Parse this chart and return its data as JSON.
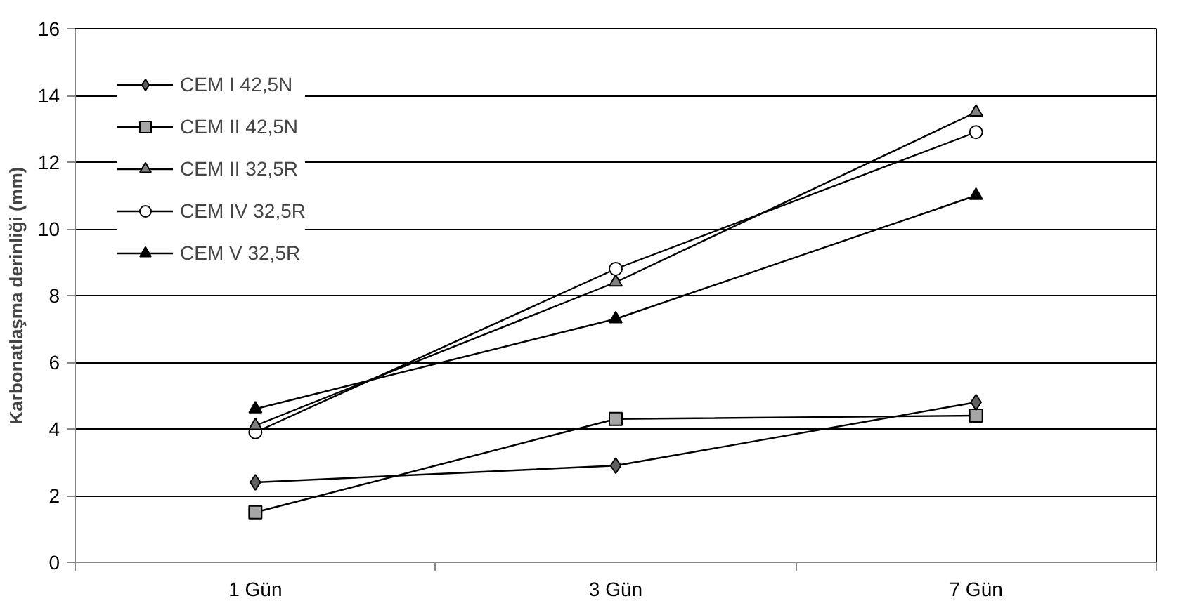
{
  "chart_data": {
    "type": "line",
    "ylabel": "Karbonatlaşma derinliği (mm)",
    "categories": [
      "1 Gün",
      "3 Gün",
      "7 Gün"
    ],
    "series": [
      {
        "name": "CEM I 42,5N",
        "color": "#606060",
        "marker": "diamond",
        "values": [
          2.4,
          2.9,
          4.8
        ]
      },
      {
        "name": "CEM II 42,5N",
        "color": "#a6a6a6",
        "marker": "square",
        "values": [
          1.5,
          4.3,
          4.4
        ]
      },
      {
        "name": "CEM II 32,5R",
        "color": "#808080",
        "marker": "triangle",
        "values": [
          4.1,
          8.4,
          13.5
        ]
      },
      {
        "name": "CEM IV 32,5R",
        "color": "#ffffff",
        "marker": "circle",
        "values": [
          3.9,
          8.8,
          12.9
        ]
      },
      {
        "name": "CEM V 32,5R",
        "color": "#000000",
        "marker": "triangle",
        "values": [
          4.6,
          7.3,
          11.0
        ]
      }
    ],
    "ylim": [
      0,
      16
    ],
    "yticks": [
      0,
      2,
      4,
      6,
      8,
      10,
      12,
      14,
      16
    ],
    "grid": "y",
    "legend": "top left",
    "line_style": "solid"
  }
}
